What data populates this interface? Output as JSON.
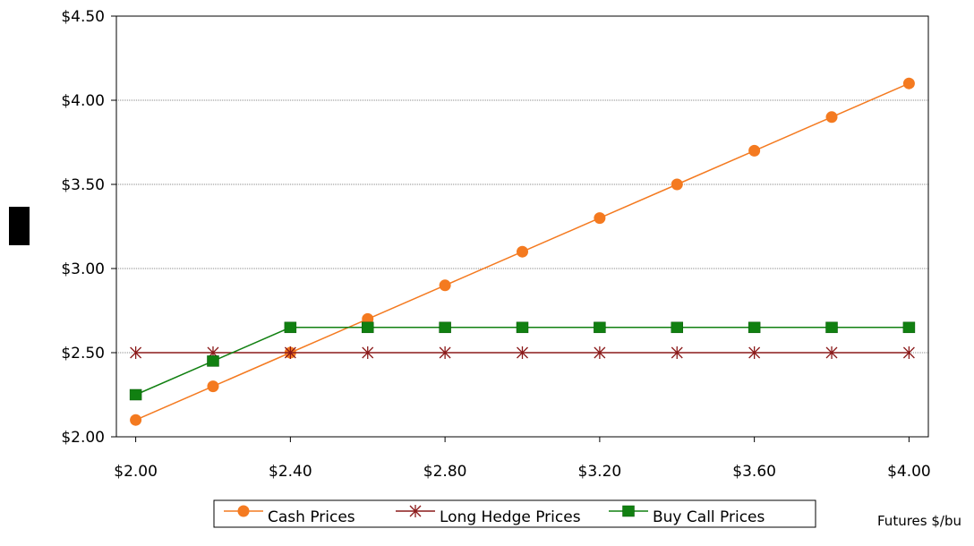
{
  "chart_data": {
    "type": "line",
    "xlabel": "Futures $/bu",
    "ylabel": "",
    "x": [
      2.0,
      2.2,
      2.4,
      2.6,
      2.8,
      3.0,
      3.2,
      3.4,
      3.6,
      3.8,
      4.0
    ],
    "xlim": [
      1.95,
      4.05
    ],
    "ylim": [
      2.0,
      4.5
    ],
    "x_ticks": [
      "$2.00",
      "$2.40",
      "$2.80",
      "$3.20",
      "$3.60",
      "$4.00"
    ],
    "x_tick_values": [
      2.0,
      2.4,
      2.8,
      3.2,
      3.6,
      4.0
    ],
    "y_ticks": [
      "$2.00",
      "$2.50",
      "$3.00",
      "$3.50",
      "$4.00",
      "$4.50"
    ],
    "y_tick_values": [
      2.0,
      2.5,
      3.0,
      3.5,
      4.0,
      4.5
    ],
    "grid": "horizontal",
    "legend_position": "bottom",
    "series": [
      {
        "name": "Cash Prices",
        "marker": "circle",
        "color": "#f47a20",
        "values": [
          2.1,
          2.3,
          2.5,
          2.7,
          2.9,
          3.1,
          3.3,
          3.5,
          3.7,
          3.9,
          4.1
        ]
      },
      {
        "name": "Long Hedge Prices",
        "marker": "star",
        "color": "#8b1a1a",
        "values": [
          2.5,
          2.5,
          2.5,
          2.5,
          2.5,
          2.5,
          2.5,
          2.5,
          2.5,
          2.5,
          2.5
        ]
      },
      {
        "name": "Buy Call Prices",
        "marker": "square",
        "color": "#118011",
        "values": [
          2.25,
          2.45,
          2.65,
          2.65,
          2.65,
          2.65,
          2.65,
          2.65,
          2.65,
          2.65,
          2.65
        ]
      }
    ]
  }
}
